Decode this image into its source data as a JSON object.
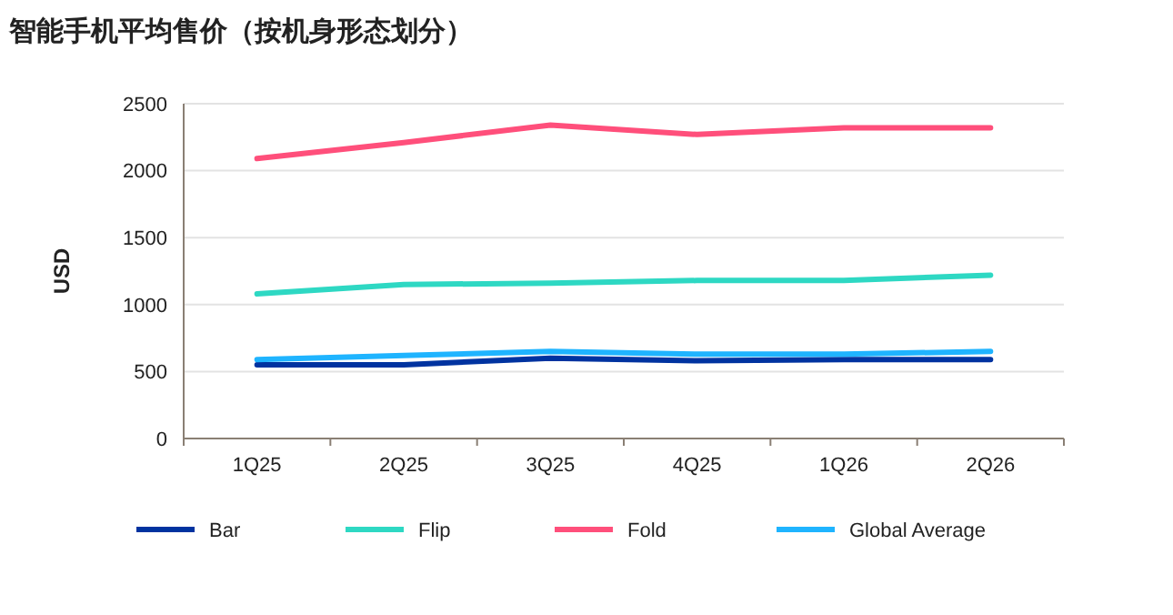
{
  "chart_data": {
    "type": "line",
    "title": "智能手机平均售价（按机身形态划分）",
    "ylabel": "USD",
    "categories": [
      "1Q25",
      "2Q25",
      "3Q25",
      "4Q25",
      "1Q26",
      "2Q26"
    ],
    "series": [
      {
        "name": "Bar",
        "color": "#0033a0",
        "values": [
          550,
          550,
          600,
          580,
          590,
          590
        ]
      },
      {
        "name": "Flip",
        "color": "#2ed8c3",
        "values": [
          1080,
          1150,
          1160,
          1180,
          1180,
          1220
        ]
      },
      {
        "name": "Fold",
        "color": "#ff4f7b",
        "values": [
          2090,
          2210,
          2340,
          2270,
          2320,
          2320
        ]
      },
      {
        "name": "Global Average",
        "color": "#1fb4ff",
        "values": [
          590,
          620,
          650,
          630,
          630,
          650
        ]
      }
    ],
    "ylim": [
      0,
      2500
    ],
    "yticks": [
      0,
      500,
      1000,
      1500,
      2000,
      2500
    ],
    "grid": "y",
    "legend": "bottom",
    "line_style": "solid"
  }
}
